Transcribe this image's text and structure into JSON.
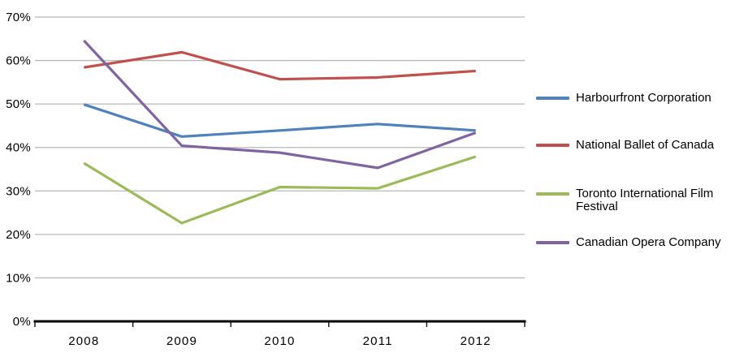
{
  "chart_data": {
    "type": "line",
    "title": "",
    "xlabel": "",
    "ylabel": "",
    "x": [
      2008,
      2009,
      2010,
      2011,
      2012
    ],
    "xtick_labels": [
      "2008",
      "2009",
      "2010",
      "2011",
      "2012"
    ],
    "ytick_labels": [
      "0%",
      "10%",
      "20%",
      "30%",
      "40%",
      "50%",
      "60%",
      "70%"
    ],
    "ylim": [
      0,
      70
    ],
    "ytick_step": 10,
    "ytick_format": "percent",
    "grid": "horizontal",
    "legend_position": "right",
    "series": [
      {
        "name": "Harbourfront Corporation",
        "legend_lines": [
          "Harbourfront Corporation"
        ],
        "color": "#4F81BD",
        "values": [
          49.9,
          42.5,
          43.9,
          45.4,
          43.9
        ]
      },
      {
        "name": "National Ballet of Canada",
        "legend_lines": [
          "National Ballet of Canada"
        ],
        "color": "#C0504D",
        "values": [
          58.4,
          61.9,
          55.7,
          56.1,
          57.6
        ]
      },
      {
        "name": "Toronto International Film Festival",
        "legend_lines": [
          "Toronto International Film",
          "Festival"
        ],
        "color": "#9BBB59",
        "values": [
          36.4,
          22.6,
          30.9,
          30.6,
          37.9
        ]
      },
      {
        "name": "Canadian Opera Company",
        "legend_lines": [
          "Canadian Opera Company"
        ],
        "color": "#8064A2",
        "values": [
          64.6,
          40.4,
          38.8,
          35.3,
          43.4
        ]
      }
    ],
    "style": {
      "background": "#FFFFFF",
      "gridline_color": "#B8B8B8",
      "axis_line_color": "#000000",
      "label_color": "#000000",
      "line_width": 3.2
    }
  }
}
